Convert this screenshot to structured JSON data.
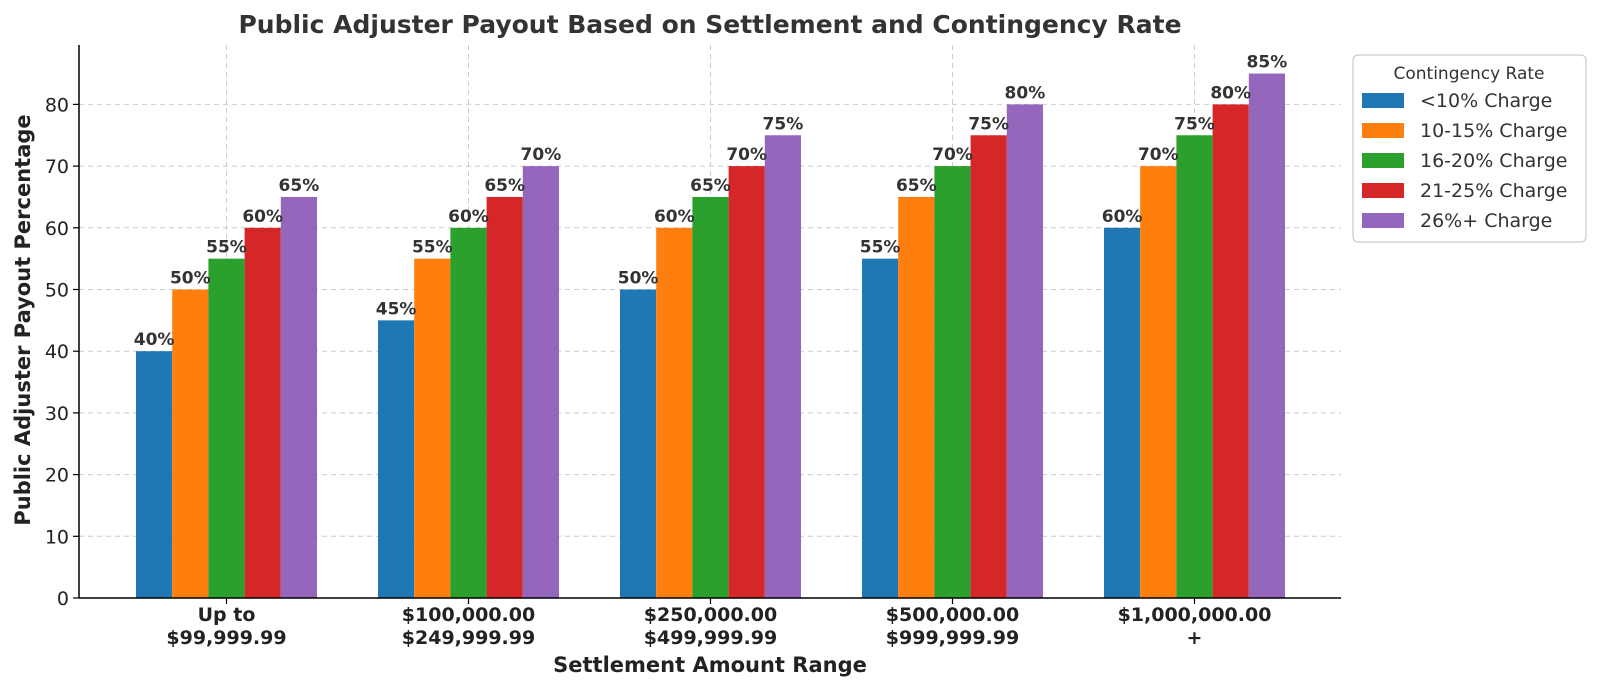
{
  "chart_data": {
    "type": "bar",
    "title": "Public Adjuster Payout Based on Settlement and Contingency Rate",
    "xlabel": "Settlement Amount Range",
    "ylabel": "Public Adjuster Payout Percentage",
    "ylim": [
      0,
      90
    ],
    "yticks": [
      0,
      10,
      20,
      30,
      40,
      50,
      60,
      70,
      80
    ],
    "grid": true,
    "legend_title": "Contingency Rate",
    "legend_position": "outside-top-right",
    "categories": [
      [
        "Up to",
        "$99,999.99"
      ],
      [
        "$100,000.00",
        "$249,999.99"
      ],
      [
        "$250,000.00",
        "$499,999.99"
      ],
      [
        "$500,000.00",
        "$999,999.99"
      ],
      [
        "$1,000,000.00",
        "+"
      ]
    ],
    "series": [
      {
        "name": "<10% Charge",
        "color": "#1f77b4",
        "values": [
          40,
          45,
          50,
          55,
          60
        ]
      },
      {
        "name": "10-15% Charge",
        "color": "#ff7f0e",
        "values": [
          50,
          55,
          60,
          65,
          70
        ]
      },
      {
        "name": "16-20% Charge",
        "color": "#2ca02c",
        "values": [
          55,
          60,
          65,
          70,
          75
        ]
      },
      {
        "name": "21-25% Charge",
        "color": "#d62728",
        "values": [
          60,
          65,
          70,
          75,
          80
        ]
      },
      {
        "name": "26%+ Charge",
        "color": "#9467bd",
        "values": [
          65,
          70,
          75,
          80,
          85
        ]
      }
    ],
    "value_label_suffix": "%"
  }
}
